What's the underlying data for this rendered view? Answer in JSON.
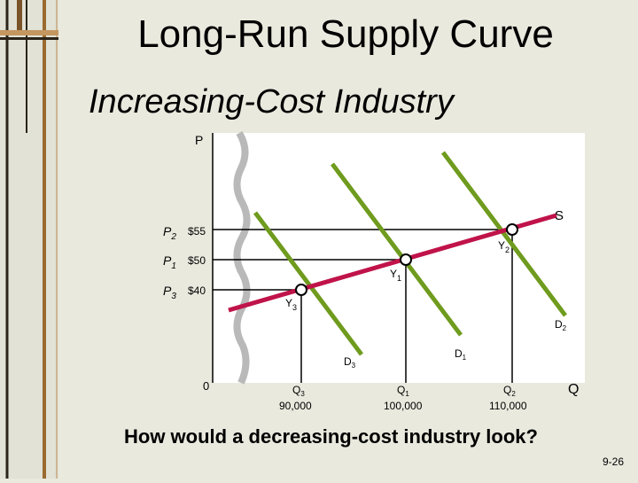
{
  "title": "Long-Run Supply Curve",
  "subtitle": "Increasing-Cost Industry",
  "question": "How would a decreasing-cost industry look?",
  "page_number": "9-26",
  "colors": {
    "background": "#e9e9de",
    "plot_background": "#ffffff",
    "demand_line": "#6f9b1e",
    "supply_line": "#c0134a",
    "wavy_axis": "#b9b9b9"
  },
  "chart_data": {
    "type": "line",
    "axis_labels": {
      "y": "P",
      "x": "Q",
      "origin": "0"
    },
    "prices": [
      {
        "label": "P",
        "subscript": "2",
        "value_label": "$55",
        "value": 55
      },
      {
        "label": "P",
        "subscript": "1",
        "value_label": "$50",
        "value": 50
      },
      {
        "label": "P",
        "subscript": "3",
        "value_label": "$40",
        "value": 40
      }
    ],
    "quantities": [
      {
        "label": "Q",
        "subscript": "3",
        "value_label": "90,000",
        "value": 90000
      },
      {
        "label": "Q",
        "subscript": "1",
        "value_label": "100,000",
        "value": 100000
      },
      {
        "label": "Q",
        "subscript": "2",
        "value_label": "110,000",
        "value": 110000
      }
    ],
    "equilibria": [
      {
        "label": "Y",
        "subscript": "3",
        "q": 90000,
        "p": 40
      },
      {
        "label": "Y",
        "subscript": "1",
        "q": 100000,
        "p": 50
      },
      {
        "label": "Y",
        "subscript": "2",
        "q": 110000,
        "p": 55
      }
    ],
    "supply_label": "S",
    "demand_curves": [
      {
        "label": "D",
        "subscript": "3"
      },
      {
        "label": "D",
        "subscript": "1"
      },
      {
        "label": "D",
        "subscript": "2"
      }
    ]
  }
}
